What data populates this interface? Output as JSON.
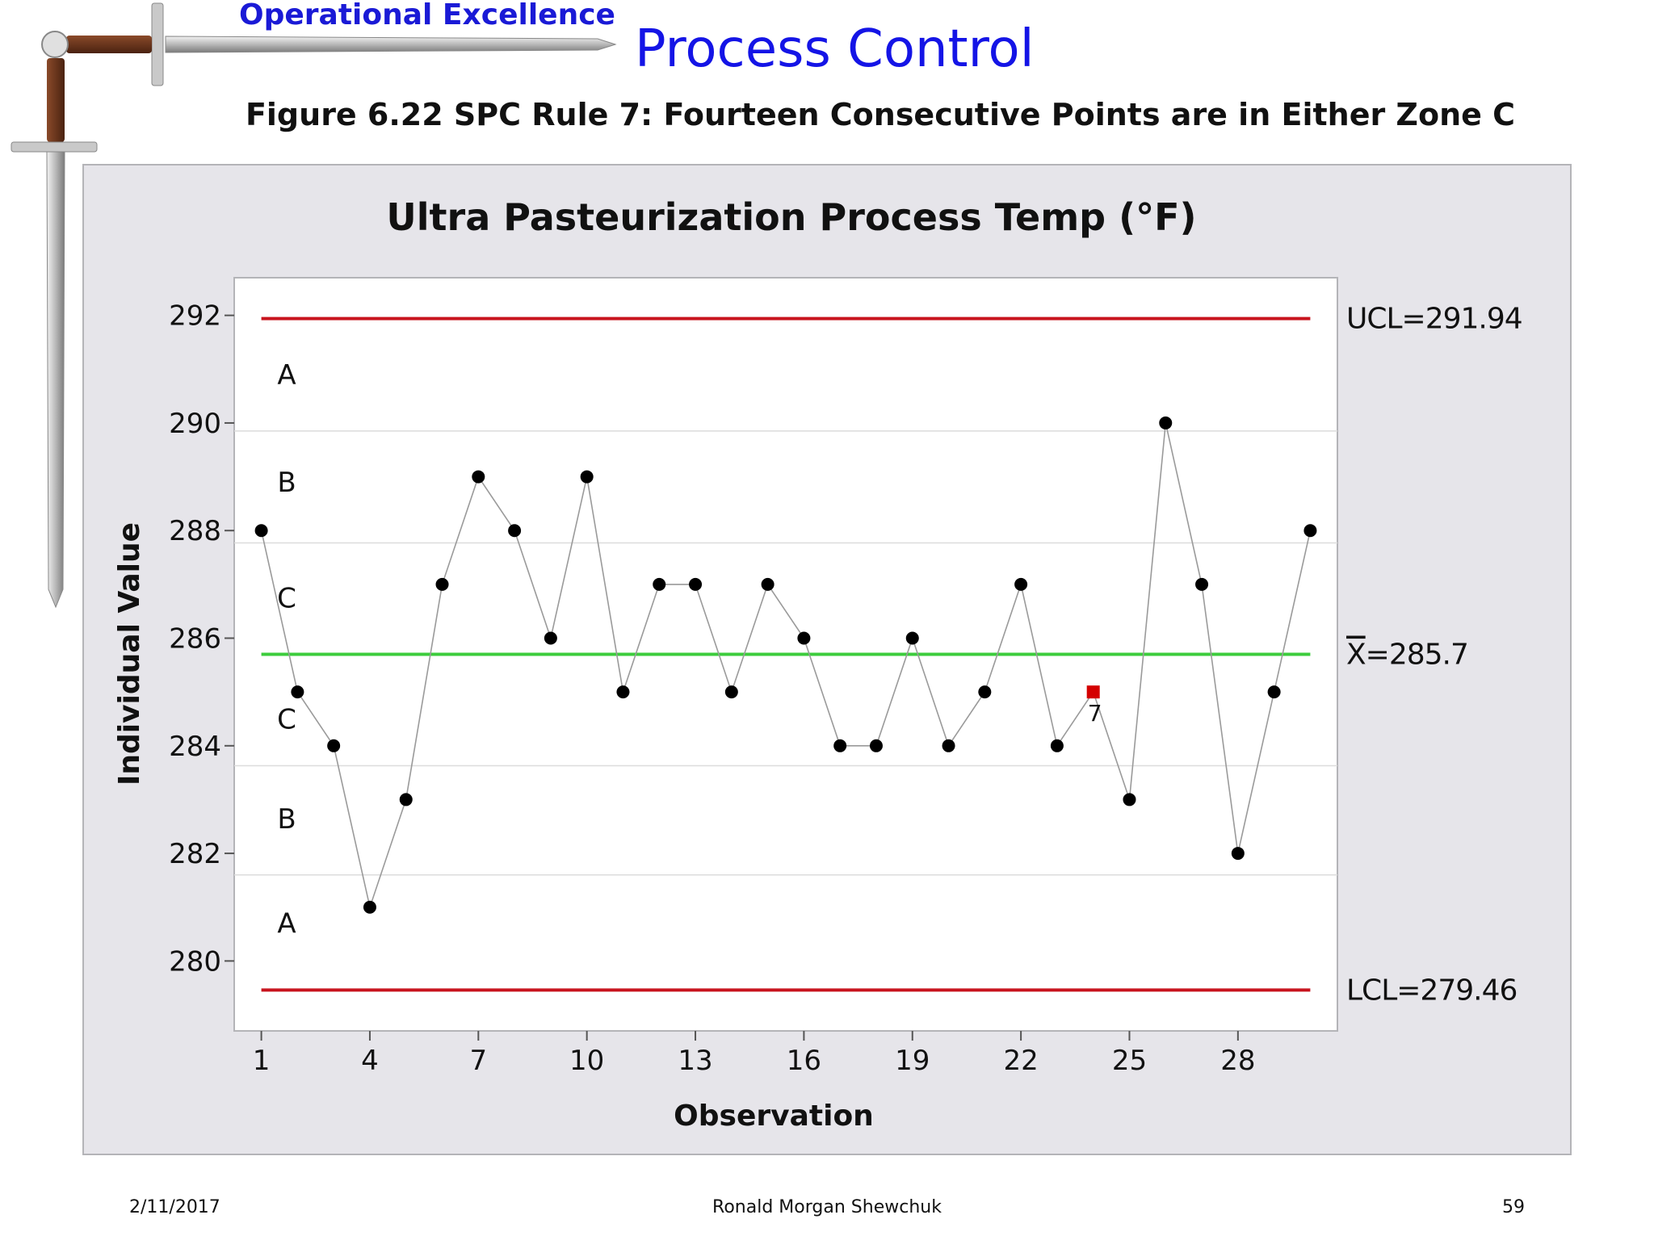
{
  "header": {
    "banner_text": "Operational Excellence",
    "title": "Process Control",
    "figure_caption": "Figure 6.22  SPC Rule 7:  Fourteen Consecutive Points are in Either Zone C"
  },
  "footer": {
    "date": "2/11/2017",
    "author": "Ronald Morgan Shewchuk",
    "page_number": "59"
  },
  "colors": {
    "limit_line": "#c8141e",
    "center_line": "#3ccc3c",
    "data_line": "#9a9a9a",
    "point": "#000000",
    "flag_point": "#d40000",
    "chart_bg": "#e6e5ea",
    "plot_bg": "#ffffff"
  },
  "chart_data": {
    "type": "line",
    "title": "Ultra Pasteurization Process Temp (°F)",
    "xlabel": "Observation",
    "ylabel": "Individual Value",
    "x": [
      1,
      2,
      3,
      4,
      5,
      6,
      7,
      8,
      9,
      10,
      11,
      12,
      13,
      14,
      15,
      16,
      17,
      18,
      19,
      20,
      21,
      22,
      23,
      24,
      25,
      26,
      27,
      28,
      29,
      30
    ],
    "series": [
      {
        "values": [
          288,
          285,
          284,
          281,
          283,
          287,
          289,
          288,
          286,
          289,
          285,
          287,
          287,
          285,
          287,
          286,
          284,
          284,
          286,
          284,
          285,
          287,
          284,
          285,
          283,
          290,
          287,
          282,
          285,
          288
        ]
      }
    ],
    "flagged_points": [
      {
        "x": 24,
        "value": 285,
        "label": "7"
      }
    ],
    "x_ticks": [
      1,
      4,
      7,
      10,
      13,
      16,
      19,
      22,
      25,
      28
    ],
    "y_ticks": [
      280,
      282,
      284,
      286,
      288,
      290,
      292
    ],
    "xlim": [
      0.25,
      30.75
    ],
    "ylim": [
      278.7,
      292.7
    ],
    "ucl": {
      "value": 291.94,
      "label": "UCL=291.94"
    },
    "center": {
      "value": 285.7,
      "label_symbol": "X",
      "label_rest": "=285.7"
    },
    "lcl": {
      "value": 279.46,
      "label": "LCL=279.46"
    },
    "zone_boundaries": [
      281.6,
      283.63,
      287.77,
      289.85
    ],
    "zones": [
      {
        "label": "A",
        "value": 290.9
      },
      {
        "label": "B",
        "value": 288.9
      },
      {
        "label": "C",
        "value": 286.75
      },
      {
        "label": "C",
        "value": 284.5
      },
      {
        "label": "B",
        "value": 282.65
      },
      {
        "label": "A",
        "value": 280.7
      }
    ],
    "grid": false,
    "legend": "none"
  }
}
